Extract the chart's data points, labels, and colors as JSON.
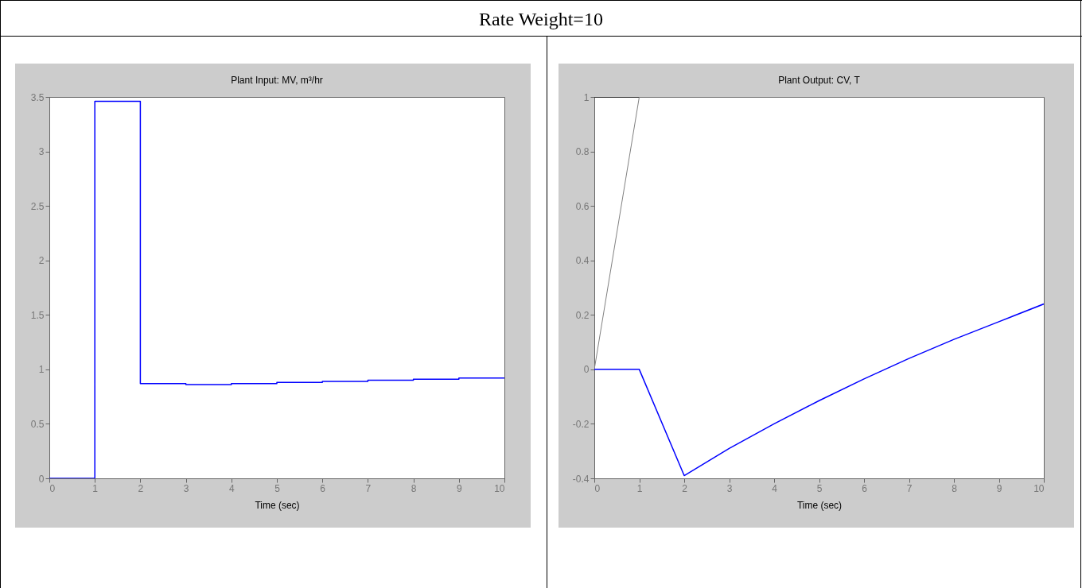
{
  "chart_data": [
    {
      "type": "step",
      "title": "Plant Input:  MV, m³/hr",
      "xlabel": "Time (sec)",
      "annotations": [
        "Rate Weight=10"
      ],
      "xlim": [
        0,
        10
      ],
      "xticks": [
        0,
        1,
        2,
        3,
        4,
        5,
        6,
        7,
        8,
        9,
        10
      ],
      "ylim": [
        0,
        3.5
      ],
      "yticks": [
        0,
        0.5,
        1,
        1.5,
        2,
        2.5,
        3,
        3.5
      ],
      "series": [
        {
          "color": "#0000ff",
          "x": [
            0,
            1,
            2,
            3,
            4,
            5,
            6,
            7,
            8,
            9,
            10
          ],
          "values": [
            0,
            3.46,
            0.87,
            0.86,
            0.87,
            0.88,
            0.89,
            0.9,
            0.91,
            0.92,
            0.92
          ]
        }
      ]
    },
    {
      "type": "line",
      "title": "Plant Output:  CV, T",
      "xlabel": "Time (sec)",
      "xlim": [
        0,
        10
      ],
      "xticks": [
        0,
        1,
        2,
        3,
        4,
        5,
        6,
        7,
        8,
        9,
        10
      ],
      "ylim": [
        -0.4,
        1
      ],
      "yticks": [
        -0.4,
        -0.2,
        0,
        0.2,
        0.4,
        0.6,
        0.8,
        1
      ],
      "series": [
        {
          "color": "#000000",
          "x": [
            0,
            1
          ],
          "values": [
            1,
            1
          ]
        },
        {
          "color": "#808080",
          "x": [
            0,
            1,
            10
          ],
          "values": [
            0,
            1,
            1
          ]
        },
        {
          "color": "#0000ff",
          "x": [
            0,
            1,
            2,
            3,
            4,
            5,
            6,
            7,
            8,
            9,
            10
          ],
          "values": [
            0,
            0,
            -0.39,
            -0.29,
            -0.2,
            -0.115,
            -0.035,
            0.04,
            0.11,
            0.175,
            0.24
          ]
        }
      ]
    }
  ]
}
